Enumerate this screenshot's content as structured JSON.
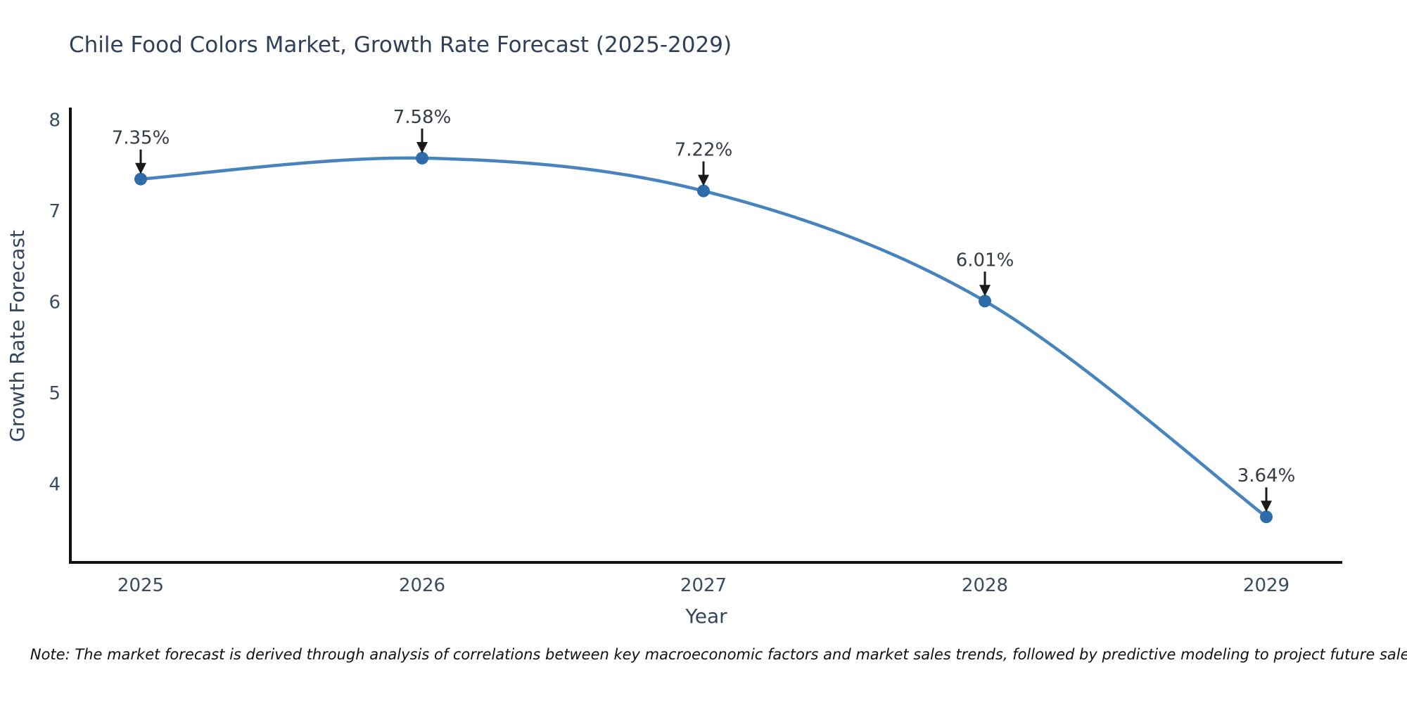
{
  "title": "Chile Food Colors Market, Growth Rate Forecast (2025-2029)",
  "note": "Note: The market forecast is derived through analysis of correlations between key macroeconomic factors and market sales trends, followed by predictive modeling to project future sales.",
  "chart_data": {
    "type": "line",
    "curve": "spline",
    "x": [
      2025,
      2026,
      2027,
      2028,
      2029
    ],
    "values": [
      7.35,
      7.58,
      7.22,
      6.01,
      3.64
    ],
    "point_labels": [
      "7.35%",
      "7.58%",
      "7.22%",
      "6.01%",
      "3.64%"
    ],
    "title": "Chile Food Colors Market, Growth Rate Forecast (2025-2029)",
    "xlabel": "Year",
    "ylabel": "Growth Rate Forecast",
    "x_tick_labels": [
      "2025",
      "2026",
      "2027",
      "2028",
      "2029"
    ],
    "y_ticks": [
      4,
      5,
      6,
      7,
      8
    ],
    "xlim": [
      2024.75,
      2029.27
    ],
    "ylim": [
      3.14,
      8.12
    ],
    "grid": false,
    "legend": "none",
    "annotations": "value labels with black down arrows above each point",
    "line_color": "#4783bd",
    "marker_color": "#2d6ca8",
    "axis_color": "#111111",
    "arrow_color": "#1a1a1a",
    "title_color": "#2f3f58",
    "tick_color": "#3a4a60",
    "note_color": "#111111"
  }
}
